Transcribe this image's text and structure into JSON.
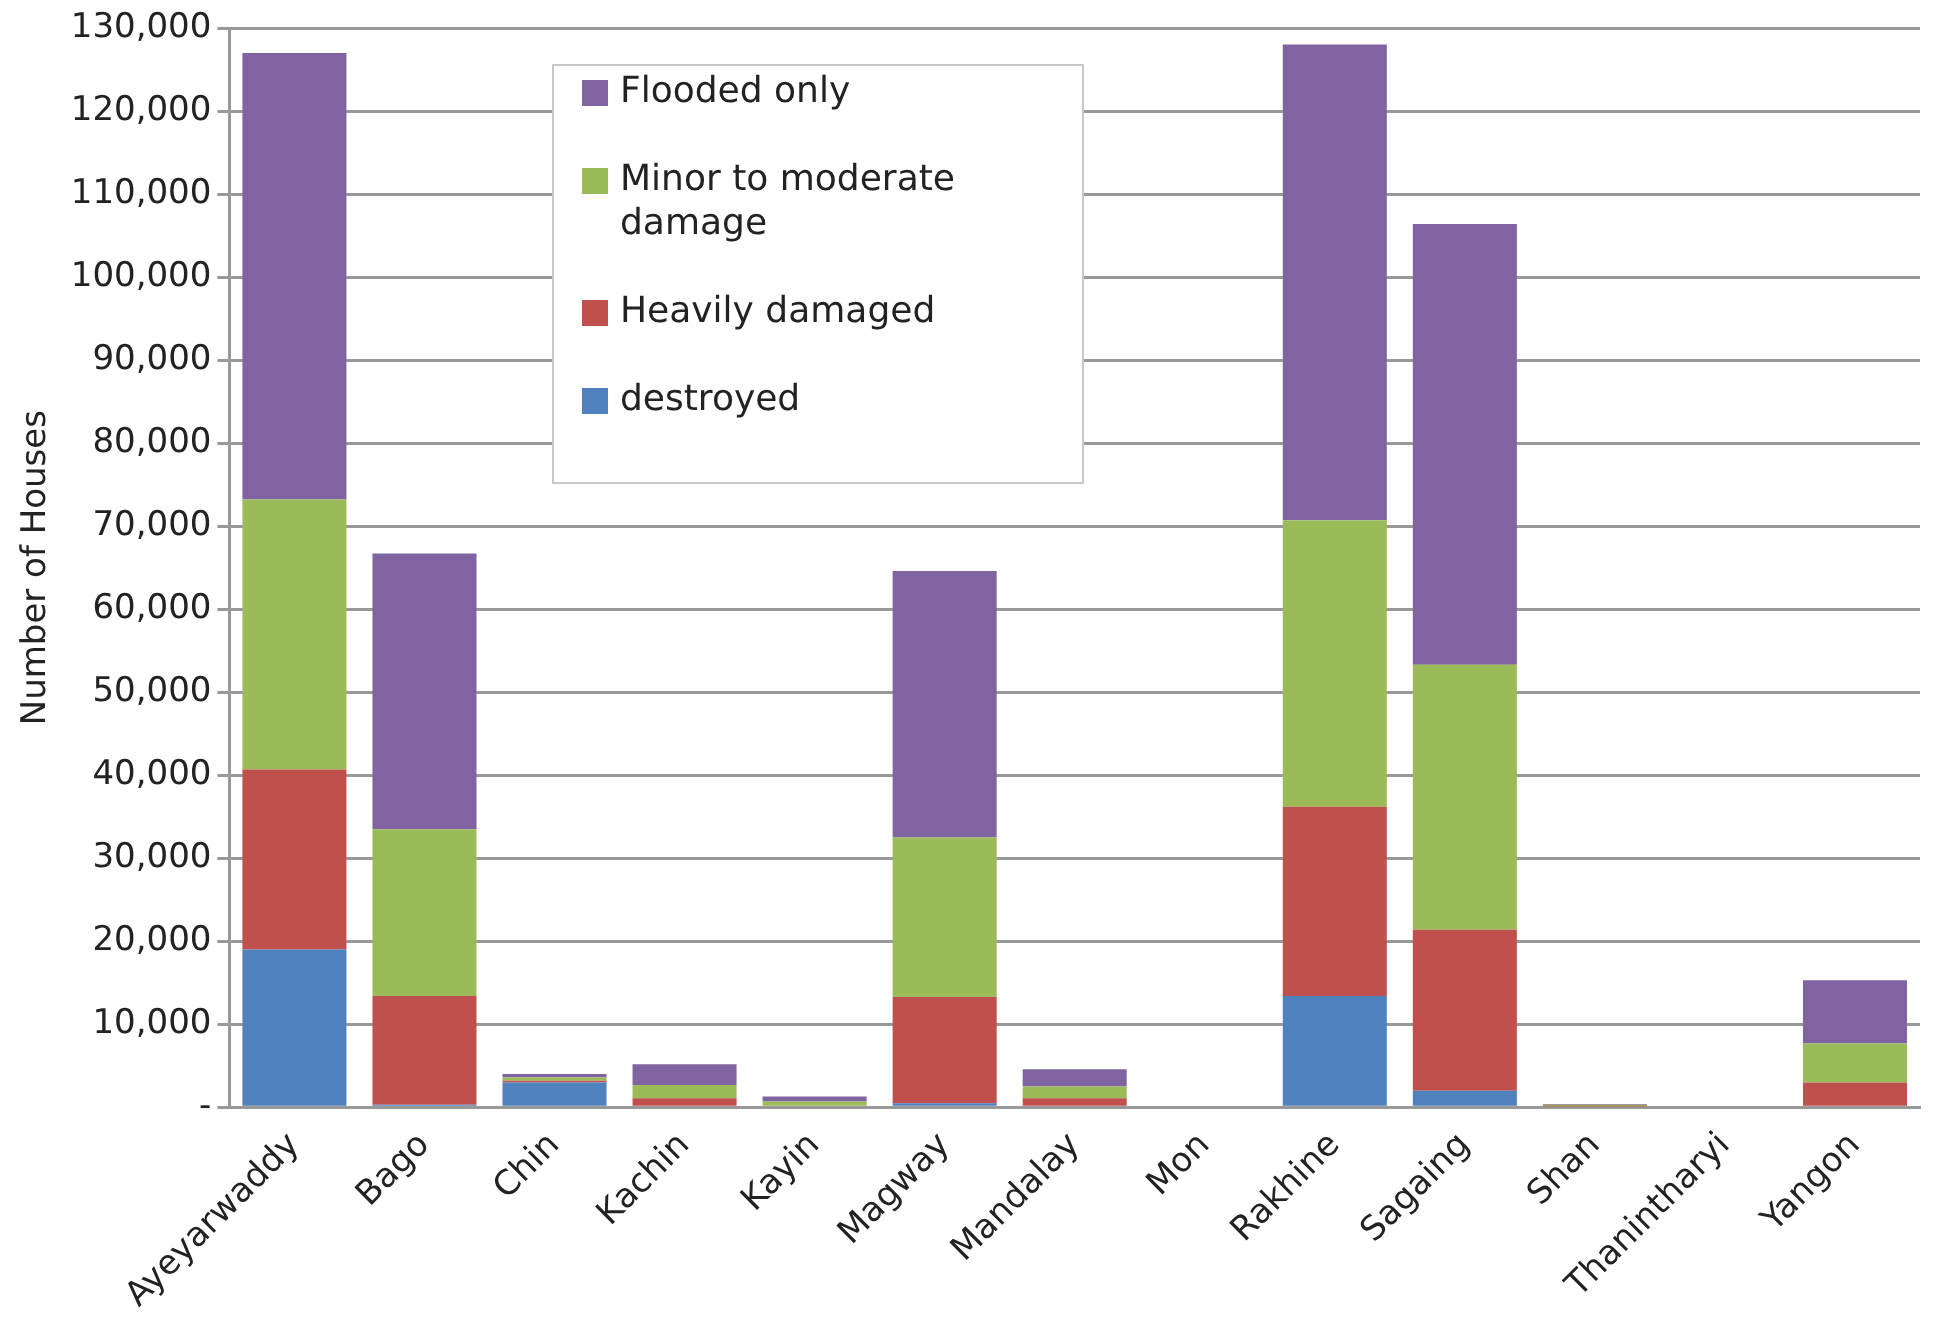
{
  "chart_data": {
    "type": "bar",
    "stacked": true,
    "ylabel": "Number of Houses",
    "categories": [
      "Ayeyarwaddy",
      "Bago",
      "Chin",
      "Kachin",
      "Kayin",
      "Magway",
      "Mandalay",
      "Mon",
      "Rakhine",
      "Sagaing",
      "Shan",
      "Thanintharyi",
      "Yangon"
    ],
    "series": [
      {
        "name": "destroyed",
        "color": "#4f81bd",
        "values": [
          19000,
          300,
          3000,
          0,
          0,
          500,
          0,
          0,
          13400,
          2000,
          0,
          0,
          0
        ]
      },
      {
        "name": "Heavily damaged",
        "color": "#c0504d",
        "values": [
          21700,
          13100,
          200,
          1100,
          200,
          12800,
          1100,
          0,
          22800,
          19400,
          100,
          0,
          3000
        ]
      },
      {
        "name": "Minor to moderate damage",
        "color": "#9bbb59",
        "values": [
          32500,
          20100,
          400,
          1600,
          500,
          19200,
          1400,
          0,
          34500,
          31900,
          200,
          0,
          4700
        ]
      },
      {
        "name": "Flooded only",
        "color": "#8064a2",
        "values": [
          53800,
          33200,
          400,
          2500,
          600,
          32100,
          2100,
          0,
          57300,
          53100,
          100,
          0,
          7600
        ]
      }
    ],
    "ylim": [
      0,
      130000
    ],
    "yticks": [
      {
        "value": 0,
        "label": "-"
      },
      {
        "value": 10000,
        "label": "10,000"
      },
      {
        "value": 20000,
        "label": "20,000"
      },
      {
        "value": 30000,
        "label": "30,000"
      },
      {
        "value": 40000,
        "label": "40,000"
      },
      {
        "value": 50000,
        "label": "50,000"
      },
      {
        "value": 60000,
        "label": "60,000"
      },
      {
        "value": 70000,
        "label": "70,000"
      },
      {
        "value": 80000,
        "label": "80,000"
      },
      {
        "value": 90000,
        "label": "90,000"
      },
      {
        "value": 100000,
        "label": "100,000"
      },
      {
        "value": 110000,
        "label": "110,000"
      },
      {
        "value": 120000,
        "label": "120,000"
      },
      {
        "value": 130000,
        "label": "130,000"
      }
    ],
    "grid": "y",
    "legend": "top left"
  }
}
